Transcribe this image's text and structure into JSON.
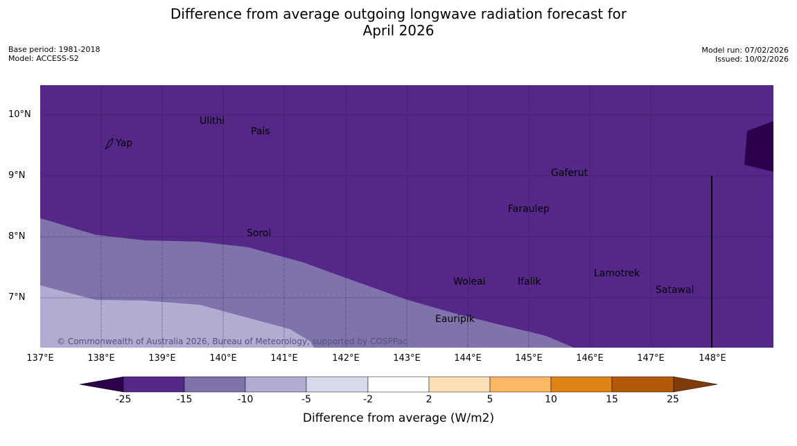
{
  "title_line1": "Difference from average outgoing longwave radiation forecast for",
  "title_line2": "April 2026",
  "meta": {
    "base_period": "Base period: 1981-2018",
    "model": "Model: ACCESS-S2",
    "model_run": "Model run: 07/02/2026",
    "issued": "Issued: 10/02/2026"
  },
  "axes": {
    "lat": [
      "10°N",
      "9°N",
      "8°N",
      "7°N"
    ],
    "lon": [
      "137°E",
      "138°E",
      "139°E",
      "140°E",
      "141°E",
      "142°E",
      "143°E",
      "144°E",
      "145°E",
      "146°E",
      "147°E",
      "148°E"
    ]
  },
  "places": [
    "Ulithi",
    "Pais",
    "Yap",
    "Gaferut",
    "Faraulep",
    "Sorol",
    "Lamotrek",
    "Woleai",
    "Ifalik",
    "Satawal",
    "Eauripik"
  ],
  "copyright": "© Commonwealth of Australia 2026, Bureau of Meteorology, supported by COSPPac",
  "colorbar": {
    "title": "Difference from average (W/m2)",
    "ticks": [
      "-25",
      "-15",
      "-10",
      "-5",
      "-2",
      "2",
      "5",
      "10",
      "15",
      "25"
    ],
    "colors": [
      "#2d004b",
      "#542788",
      "#8073ac",
      "#b2abd2",
      "#d8daeb",
      "#ffffff",
      "#fee0b6",
      "#fdb863",
      "#e08214",
      "#b35806",
      "#7f3b08"
    ]
  },
  "map_colors": {
    "very_low": "#2d004b",
    "low": "#542788",
    "mid": "#8073ac",
    "light": "#b2abd2",
    "lighter": "#d8daeb"
  }
}
